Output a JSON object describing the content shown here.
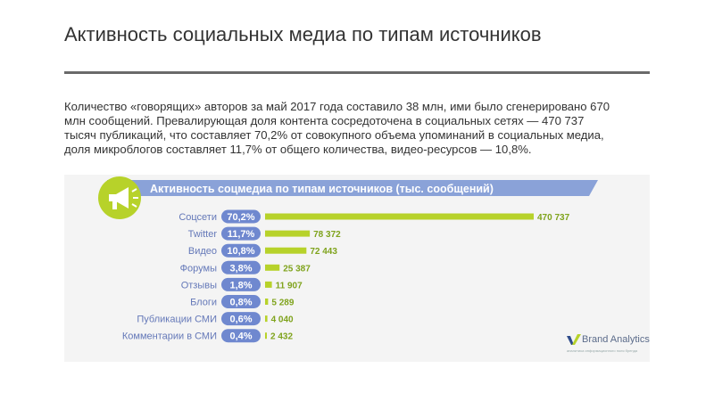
{
  "slide": {
    "title": "Активность социальных медиа по типам источников",
    "body": "Количество «говорящих» авторов за май 2017 года составило 38 млн, ими было сгенерировано 670 млн сообщений. Превалирующая доля контента сосредоточена в социальных сетях — 470 737 тысяч публикаций, что составляет 70,2% от совокупного объема упоминаний в социальных медиа, доля микроблогов составляет 11,7% от общего количества, видео-ресурсов — 10,8%."
  },
  "brand": {
    "name": "Brand Analytics",
    "tagline": "аналитика информационного поля бренда",
    "icon": "brand-analytics-logo"
  },
  "colors": {
    "banner": "#8aa2d8",
    "pill": "#6f88cf",
    "bar": "#b7d22a",
    "icon_circle": "#b7d22a",
    "label": "#6478b8",
    "value": "#7fa31c"
  },
  "chart_data": {
    "type": "bar",
    "orientation": "horizontal",
    "title": "Активность соцмедиа по типам источников (тыс. сообщений)",
    "title_icon": "megaphone-icon",
    "categories": [
      "Соцсети",
      "Twitter",
      "Видео",
      "Форумы",
      "Отзывы",
      "Блоги",
      "Публикации СМИ",
      "Комментарии в СМИ"
    ],
    "shares": [
      "70,2%",
      "11,7%",
      "10,8%",
      "3,8%",
      "1,8%",
      "0,8%",
      "0,6%",
      "0,4%"
    ],
    "values": [
      470737,
      78372,
      72443,
      25387,
      11907,
      5289,
      4040,
      2432
    ],
    "value_labels": [
      "470 737",
      "78 372",
      "72 443",
      "25 387",
      "11 907",
      "5 289",
      "4 040",
      "2 432"
    ],
    "xlim": [
      0,
      470737
    ],
    "grid": false,
    "legend": "none"
  }
}
